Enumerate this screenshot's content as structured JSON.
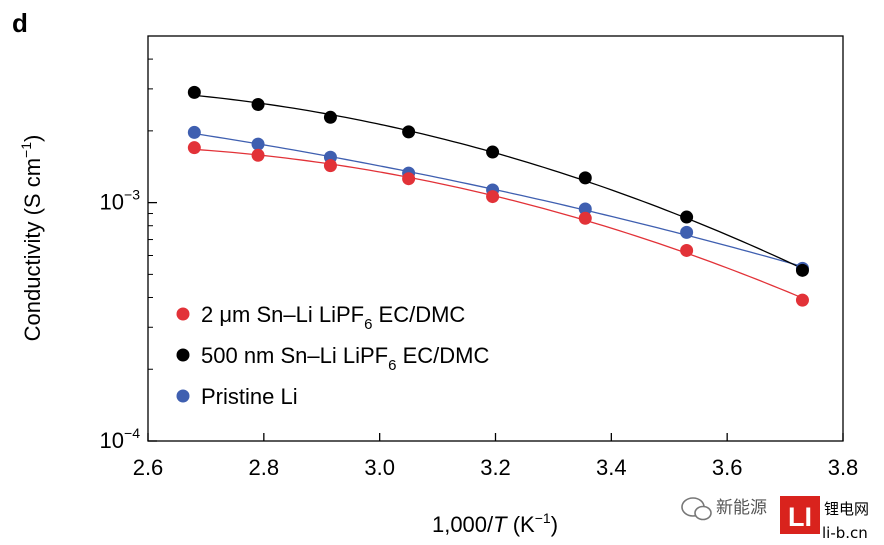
{
  "panel_label": "d",
  "chart_data": {
    "type": "scatter",
    "xlabel": "1,000/T (K⁻¹)",
    "xlabel_prefix": "1,000/",
    "xlabel_var": "T",
    "xlabel_unit": " (K",
    "xlabel_unit_sup": "−1",
    "xlabel_close": ")",
    "ylabel": "Conductivity (S cm⁻¹)",
    "ylabel_main": "Conductivity (S cm",
    "ylabel_sup": "−1",
    "ylabel_close": ")",
    "xlim": [
      2.6,
      3.8
    ],
    "ylim": [
      0.0001,
      0.005
    ],
    "yscale": "log",
    "grid": false,
    "legend_position": "lower-left",
    "xticks": [
      2.6,
      2.8,
      3.0,
      3.2,
      3.4,
      3.6,
      3.8
    ],
    "xtick_labels": [
      "2.6",
      "2.8",
      "3.0",
      "3.2",
      "3.4",
      "3.6",
      "3.8"
    ],
    "yticks": [
      {
        "value": 0.001,
        "base": "10",
        "exp": "−3"
      },
      {
        "value": 0.0001,
        "base": "10",
        "exp": "−4"
      }
    ],
    "series": [
      {
        "name": "2 μm Sn–Li LiPF6 EC/DMC",
        "name_parts": [
          "2 μm Sn–Li LiPF",
          "6",
          " EC/DMC"
        ],
        "color": "#e23238",
        "x": [
          2.68,
          2.79,
          2.915,
          3.05,
          3.195,
          3.355,
          3.53,
          3.73
        ],
        "y": [
          0.0017,
          0.00158,
          0.00143,
          0.00126,
          0.00106,
          0.00086,
          0.00063,
          0.00039
        ]
      },
      {
        "name": "500 nm Sn–Li LiPF6 EC/DMC",
        "name_parts": [
          "500 nm Sn–Li LiPF",
          "6",
          " EC/DMC"
        ],
        "color": "#000000",
        "x": [
          2.68,
          2.79,
          2.915,
          3.05,
          3.195,
          3.355,
          3.53,
          3.73
        ],
        "y": [
          0.0029,
          0.00258,
          0.00228,
          0.00198,
          0.00163,
          0.00127,
          0.00087,
          0.00052
        ]
      },
      {
        "name": "Pristine Li",
        "name_parts": [
          "Pristine Li",
          "",
          ""
        ],
        "color": "#3f5fb0",
        "x": [
          2.68,
          2.79,
          2.915,
          3.05,
          3.195,
          3.355,
          3.53,
          3.73
        ],
        "y": [
          0.00197,
          0.00176,
          0.00155,
          0.00133,
          0.00113,
          0.00094,
          0.00075,
          0.00053
        ]
      }
    ]
  },
  "watermark": {
    "text": "新能源 ",
    "logo_text": "LI",
    "site_title": "锂电网",
    "site_url": "li-b.cn"
  }
}
